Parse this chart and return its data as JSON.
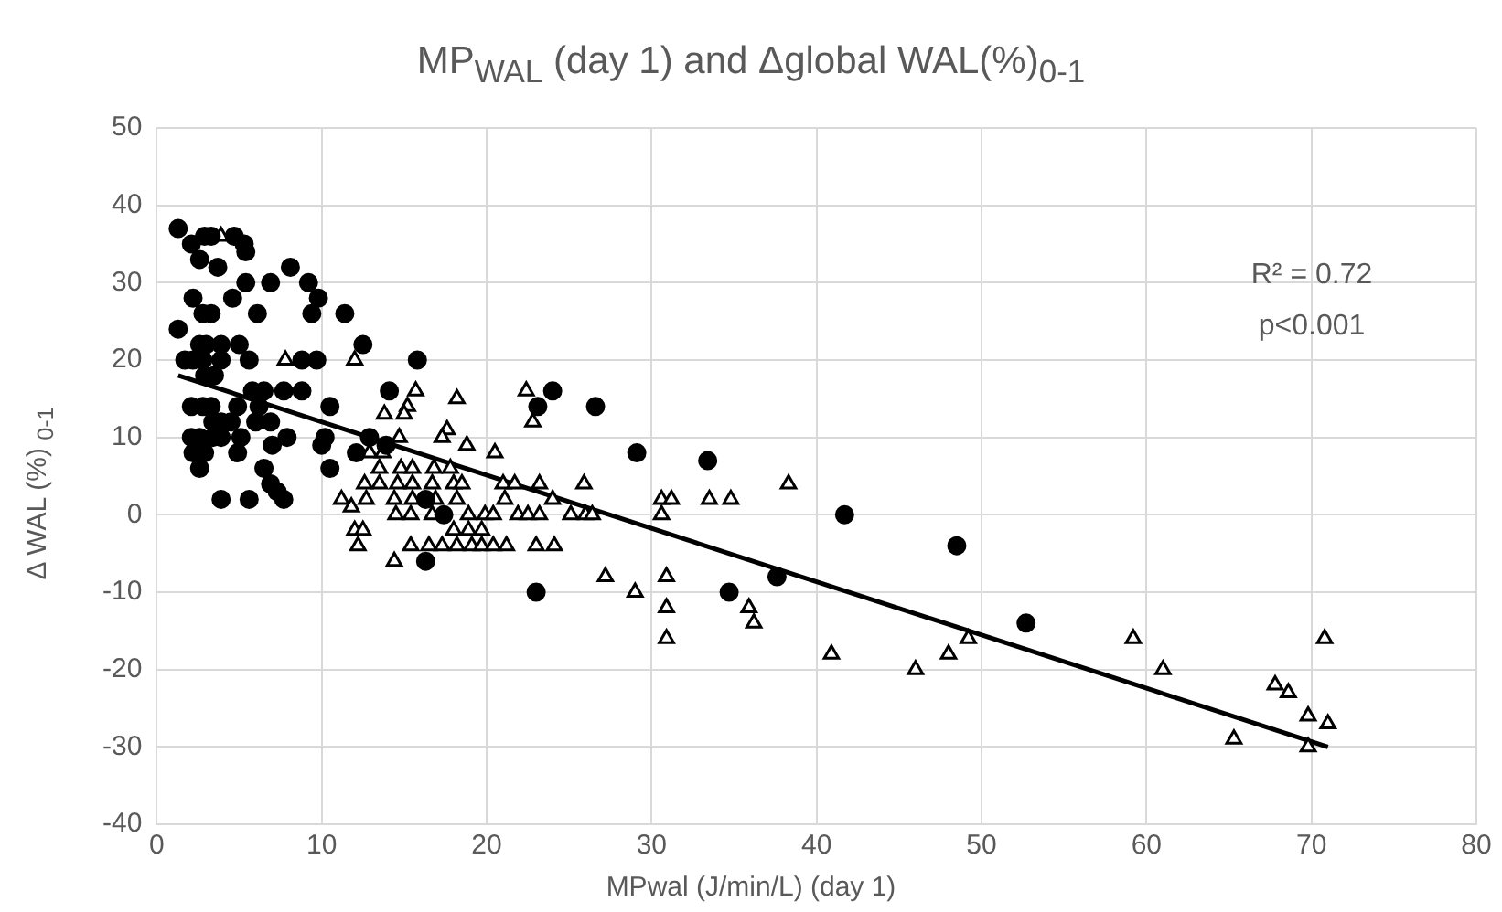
{
  "chart_data": {
    "type": "scatter",
    "title": "MP$_{WAL}$ (day 1) and Δglobal WAL(%)$_{0-1}$",
    "xlabel": "MPwal (J/min/L) (day 1)",
    "ylabel": "Δ WAL (%) $_{0-1}$",
    "xlim": [
      0,
      80
    ],
    "xticks": [
      0,
      10,
      20,
      30,
      40,
      50,
      60,
      70,
      80
    ],
    "ylim": [
      -40,
      50
    ],
    "yticks": [
      -40,
      -30,
      -20,
      -10,
      0,
      10,
      20,
      30,
      40,
      50
    ],
    "grid": true,
    "legend": false,
    "annotations": [
      "R² = 0.72",
      "p<0.001"
    ],
    "series": [
      {
        "type": "scatter",
        "marker": "circle",
        "color": "#000000",
        "x": [
          1.3,
          2.1,
          2.9,
          3.3,
          4.7,
          5.3,
          5.4,
          2.6,
          3.7,
          8.1,
          5.4,
          6.9,
          9.2,
          9.8,
          2.2,
          4.6,
          2.8,
          3.3,
          6.1,
          9.4,
          11.4,
          1.3,
          2.6,
          3.0,
          3.9,
          5.0,
          12.5,
          1.7,
          2.2,
          2.8,
          3.9,
          5.6,
          8.8,
          9.7,
          15.8,
          2.9,
          3.5,
          5.8,
          6.5,
          7.7,
          8.8,
          14.1,
          2.1,
          2.8,
          3.3,
          4.9,
          6.2,
          10.5,
          3.4,
          3.9,
          4.5,
          6.0,
          6.9,
          2.1,
          2.6,
          3.4,
          3.9,
          5.1,
          7.9,
          10.2,
          12.9,
          2.2,
          2.9,
          4.9,
          7.0,
          10.0,
          12.1,
          2.6,
          6.5,
          10.5,
          6.9,
          7.3,
          7.7,
          3.9,
          5.6,
          24.0,
          23.1,
          26.6,
          13.9,
          29.1,
          16.3,
          17.4,
          16.3,
          23.0,
          33.4,
          41.7,
          48.5,
          37.6,
          34.7,
          52.7
        ],
        "values": [
          37,
          35,
          36,
          36,
          36,
          35,
          34,
          33,
          32,
          32,
          30,
          30,
          30,
          28,
          28,
          28,
          26,
          26,
          26,
          26,
          26,
          24,
          22,
          22,
          22,
          22,
          22,
          20,
          20,
          20,
          20,
          20,
          20,
          20,
          20,
          18,
          18,
          16,
          16,
          16,
          16,
          16,
          14,
          14,
          14,
          14,
          14,
          14,
          12,
          12,
          12,
          12,
          12,
          10,
          10,
          10,
          10,
          10,
          10,
          10,
          10,
          8,
          8,
          8,
          9,
          9,
          8,
          6,
          6,
          6,
          4,
          3,
          2,
          2,
          2,
          16,
          14,
          14,
          9,
          8,
          2,
          0,
          -6,
          -10,
          7,
          0,
          -4,
          -8,
          -10,
          -14
        ]
      },
      {
        "type": "scatter",
        "marker": "triangle",
        "color": "#000000",
        "x": [
          3.9,
          7.8,
          12.0,
          15.7,
          15.2,
          15.0,
          13.8,
          18.2,
          22.4,
          22.8,
          17.6,
          17.3,
          14.7,
          18.8,
          20.5,
          12.9,
          13.7,
          13.5,
          14.8,
          15.5,
          16.8,
          17.8,
          12.6,
          13.5,
          14.6,
          15.5,
          16.7,
          18.0,
          18.5,
          21.0,
          21.7,
          23.2,
          25.9,
          11.2,
          12.7,
          14.4,
          15.5,
          16.9,
          18.2,
          21.1,
          24.0,
          11.8,
          14.5,
          15.4,
          16.7,
          18.9,
          19.9,
          20.4,
          21.9,
          22.5,
          23.2,
          25.1,
          26.0,
          26.4,
          12.0,
          12.5,
          18.0,
          18.9,
          19.7,
          12.2,
          15.4,
          16.5,
          17.3,
          18.2,
          19.1,
          19.7,
          20.4,
          21.2,
          23.0,
          24.1,
          14.4,
          27.2,
          29.0,
          30.6,
          31.2,
          33.5,
          34.8,
          38.3,
          30.6,
          30.9,
          30.9,
          30.9,
          35.9,
          36.2,
          40.9,
          46.0,
          48.0,
          49.2,
          59.2,
          61.0,
          65.3,
          67.8,
          68.6,
          69.8,
          69.8,
          71.0,
          70.8
        ],
        "values": [
          36,
          20,
          20,
          16,
          14,
          13,
          13,
          15,
          16,
          12,
          11,
          10,
          10,
          9,
          8,
          8,
          8,
          6,
          6,
          6,
          6,
          6,
          4,
          4,
          4,
          4,
          4,
          4,
          4,
          4,
          4,
          4,
          4,
          2,
          2,
          2,
          2,
          2,
          2,
          2,
          2,
          1,
          0,
          0,
          0,
          0,
          0,
          0,
          0,
          0,
          0,
          0,
          0,
          0,
          -2,
          -2,
          -2,
          -2,
          -2,
          -4,
          -4,
          -4,
          -4,
          -4,
          -4,
          -4,
          -4,
          -4,
          -4,
          -4,
          -6,
          -8,
          -10,
          2,
          2,
          2,
          2,
          4,
          0,
          -8,
          -12,
          -16,
          -12,
          -14,
          -18,
          -20,
          -18,
          -16,
          -16,
          -20,
          -29,
          -22,
          -23,
          -26,
          -30,
          -27,
          -16
        ]
      },
      {
        "type": "line",
        "marker": "none",
        "color": "#000000",
        "x": [
          1.3,
          71
        ],
        "values": [
          18,
          -30
        ]
      }
    ]
  }
}
